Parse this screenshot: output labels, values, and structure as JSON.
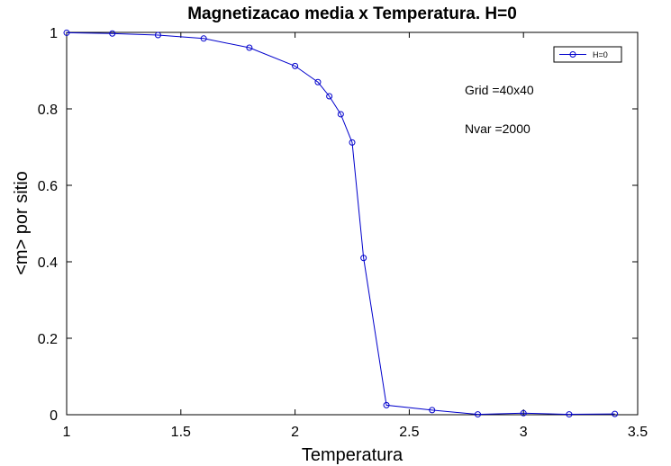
{
  "chart_data": {
    "type": "line",
    "title": "Magnetizacao media x Temperatura. H=0",
    "xlabel": "Temperatura",
    "ylabel": "<m> por sitio",
    "xlim": [
      1,
      3.5
    ],
    "ylim": [
      0,
      1
    ],
    "xticks": [
      "1",
      "1.5",
      "2",
      "2.5",
      "3",
      "3.5"
    ],
    "yticks": [
      "0",
      "0.2",
      "0.4",
      "0.6",
      "0.8",
      "1"
    ],
    "grid": false,
    "legend_position": "top-right",
    "series": [
      {
        "name": "H=0",
        "color": "#0000cc",
        "marker": "circle",
        "x": [
          1.0,
          1.2,
          1.4,
          1.6,
          1.8,
          2.0,
          2.1,
          2.15,
          2.2,
          2.25,
          2.3,
          2.4,
          2.6,
          2.8,
          3.0,
          3.2,
          3.4
        ],
        "y": [
          0.999,
          0.997,
          0.993,
          0.984,
          0.96,
          0.912,
          0.87,
          0.833,
          0.786,
          0.712,
          0.41,
          0.025,
          0.012,
          0.001,
          0.004,
          0.001,
          0.002
        ]
      }
    ],
    "annotations": [
      "Grid =40x40",
      "Nvar =2000"
    ]
  }
}
